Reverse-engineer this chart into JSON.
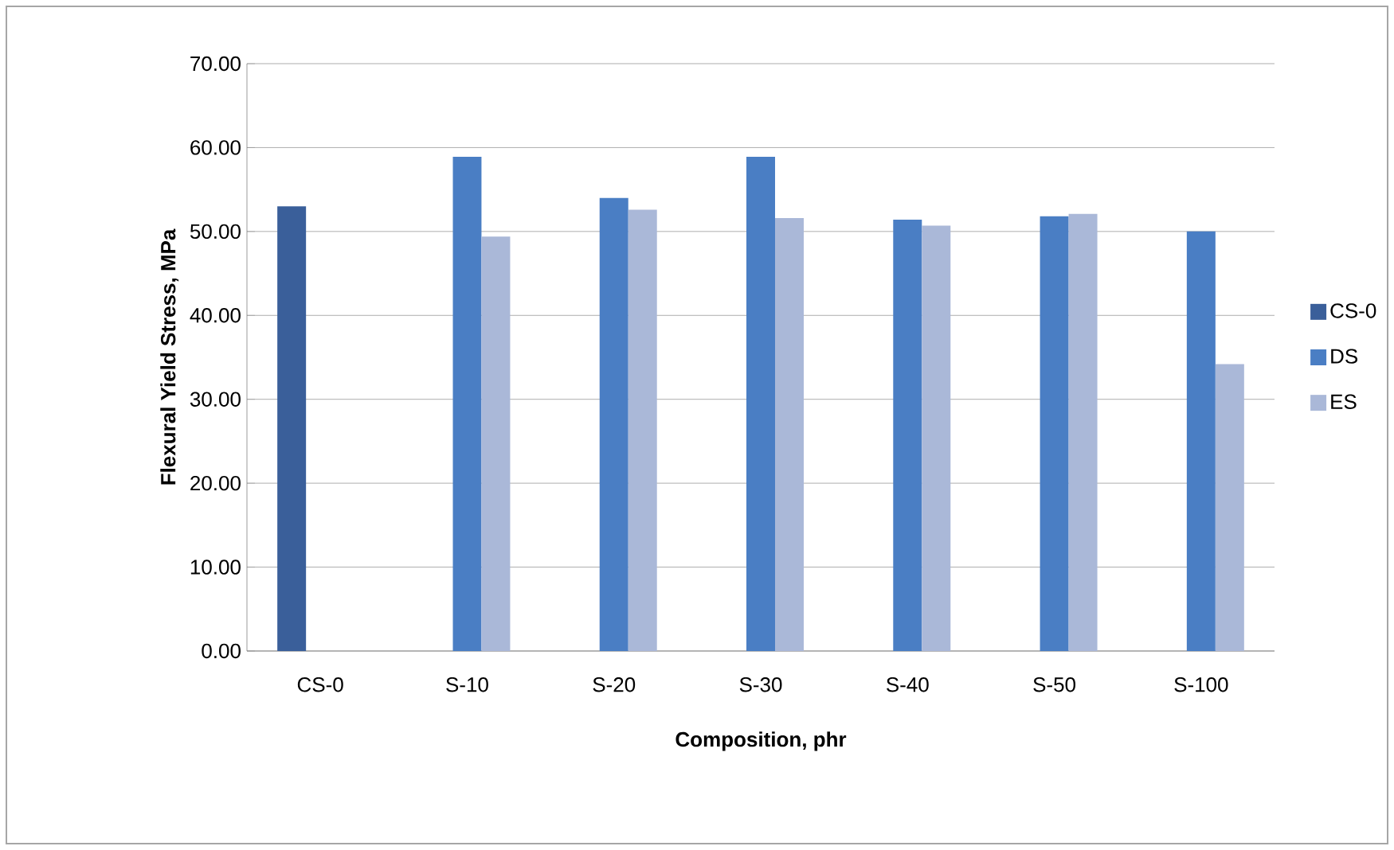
{
  "chart_data": {
    "type": "bar",
    "xlabel": "Composition, phr",
    "ylabel": "Flexural Yield Stress, MPa",
    "categories": [
      "CS-0",
      "S-10",
      "S-20",
      "S-30",
      "S-40",
      "S-50",
      "S-100"
    ],
    "series": [
      {
        "name": "CS-0",
        "color": "#3a5f9a",
        "values": [
          53.0,
          null,
          null,
          null,
          null,
          null,
          null
        ]
      },
      {
        "name": "DS",
        "color": "#4a7ec4",
        "values": [
          null,
          58.9,
          54.0,
          58.9,
          51.4,
          51.8,
          50.0
        ]
      },
      {
        "name": "ES",
        "color": "#aab8d8",
        "values": [
          null,
          49.4,
          52.6,
          51.6,
          50.7,
          52.1,
          34.2
        ]
      }
    ],
    "ylim": [
      0,
      70
    ],
    "yticks": [
      {
        "value": 0,
        "label": "0.00"
      },
      {
        "value": 10,
        "label": "10.00"
      },
      {
        "value": 20,
        "label": "20.00"
      },
      {
        "value": 30,
        "label": "30.00"
      },
      {
        "value": 40,
        "label": "40.00"
      },
      {
        "value": 50,
        "label": "50.00"
      },
      {
        "value": 60,
        "label": "60.00"
      },
      {
        "value": 70,
        "label": "70.00"
      }
    ],
    "grid": "y",
    "legend": "right"
  }
}
